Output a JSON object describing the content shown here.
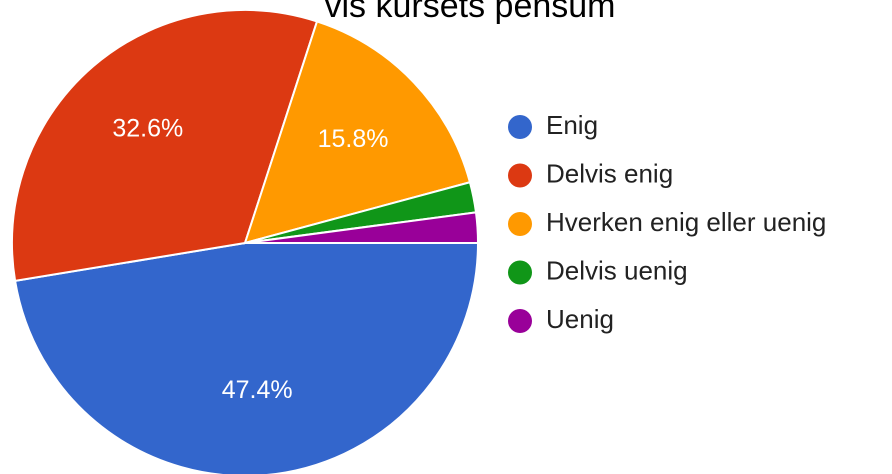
{
  "chart_data": {
    "type": "pie",
    "title": "vis kursets pensum",
    "categories": [
      "Enig",
      "Delvis enig",
      "Hverken enig eller uenig",
      "Delvis uenig",
      "Uenig"
    ],
    "values": [
      47.4,
      32.6,
      15.8,
      2.1,
      2.1
    ],
    "value_labels": [
      "47.4%",
      "32.6%",
      "15.8%",
      null,
      null
    ],
    "colors": [
      "#3366cc",
      "#dc3912",
      "#ff9900",
      "#109618",
      "#990099"
    ],
    "legend": "right"
  }
}
